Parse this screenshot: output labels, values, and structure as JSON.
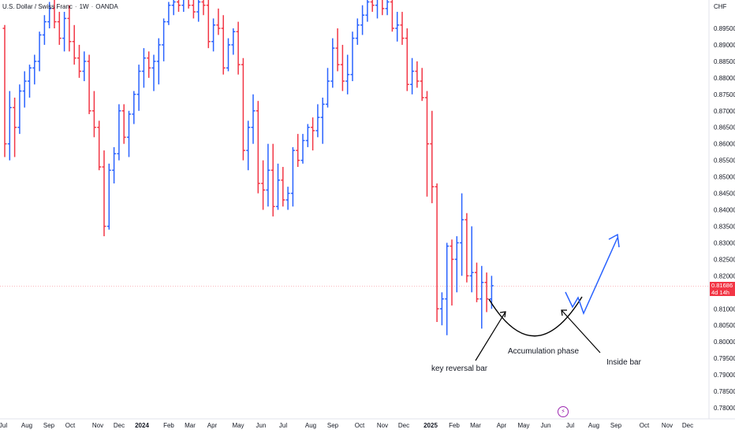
{
  "header": {
    "symbol": "U.S. Dollar / Swiss Franc",
    "interval": "1W",
    "source": "OANDA",
    "currency": "CHF"
  },
  "colors": {
    "up": "#2962ff",
    "down": "#f23645",
    "annotation": "#131722",
    "projection": "#2962ff"
  },
  "price_tag": {
    "price": "0.81686",
    "countdown": "4d 14h"
  },
  "event_icon": "lightning-icon",
  "chart_data": {
    "type": "bar",
    "style": "ohlc",
    "title": "",
    "ylim": [
      0.775,
      0.905
    ],
    "yticks": [
      "0.89500",
      "0.89000",
      "0.88500",
      "0.88000",
      "0.87500",
      "0.87000",
      "0.86500",
      "0.86000",
      "0.85500",
      "0.85000",
      "0.84500",
      "0.84000",
      "0.83500",
      "0.83000",
      "0.82500",
      "0.82000",
      "0.81500",
      "0.81000",
      "0.80500",
      "0.80000",
      "0.79500",
      "0.79000",
      "0.78500",
      "0.78000"
    ],
    "xticks": [
      {
        "label": "Jul",
        "year": false
      },
      {
        "label": "Aug",
        "year": false
      },
      {
        "label": "Sep",
        "year": false
      },
      {
        "label": "Oct",
        "year": false
      },
      {
        "label": "Nov",
        "year": false
      },
      {
        "label": "Dec",
        "year": false
      },
      {
        "label": "2024",
        "year": true
      },
      {
        "label": "Feb",
        "year": false
      },
      {
        "label": "Mar",
        "year": false
      },
      {
        "label": "Apr",
        "year": false
      },
      {
        "label": "May",
        "year": false
      },
      {
        "label": "Jun",
        "year": false
      },
      {
        "label": "Jul",
        "year": false
      },
      {
        "label": "Aug",
        "year": false
      },
      {
        "label": "Sep",
        "year": false
      },
      {
        "label": "Oct",
        "year": false
      },
      {
        "label": "Nov",
        "year": false
      },
      {
        "label": "Dec",
        "year": false
      },
      {
        "label": "2025",
        "year": true
      },
      {
        "label": "Feb",
        "year": false
      },
      {
        "label": "Mar",
        "year": false
      },
      {
        "label": "Apr",
        "year": false
      },
      {
        "label": "May",
        "year": false
      },
      {
        "label": "Jun",
        "year": false
      },
      {
        "label": "Jul",
        "year": false
      },
      {
        "label": "Aug",
        "year": false
      },
      {
        "label": "Sep",
        "year": false
      },
      {
        "label": "Oct",
        "year": false
      },
      {
        "label": "Nov",
        "year": false
      },
      {
        "label": "Dec",
        "year": false
      }
    ],
    "last_price": 0.81686,
    "ohlc": [
      [
        0.895,
        0.896,
        0.856,
        0.86
      ],
      [
        0.86,
        0.876,
        0.855,
        0.871
      ],
      [
        0.871,
        0.874,
        0.856,
        0.865
      ],
      [
        0.865,
        0.878,
        0.863,
        0.876
      ],
      [
        0.876,
        0.882,
        0.871,
        0.879
      ],
      [
        0.879,
        0.884,
        0.874,
        0.883
      ],
      [
        0.883,
        0.887,
        0.878,
        0.885
      ],
      [
        0.885,
        0.894,
        0.882,
        0.893
      ],
      [
        0.893,
        0.899,
        0.89,
        0.897
      ],
      [
        0.897,
        0.903,
        0.895,
        0.901
      ],
      [
        0.901,
        0.905,
        0.895,
        0.897
      ],
      [
        0.897,
        0.9,
        0.89,
        0.892
      ],
      [
        0.892,
        0.9,
        0.888,
        0.898
      ],
      [
        0.898,
        0.902,
        0.888,
        0.891
      ],
      [
        0.891,
        0.896,
        0.884,
        0.886
      ],
      [
        0.886,
        0.89,
        0.88,
        0.882
      ],
      [
        0.882,
        0.888,
        0.879,
        0.885
      ],
      [
        0.885,
        0.887,
        0.869,
        0.87
      ],
      [
        0.87,
        0.876,
        0.862,
        0.865
      ],
      [
        0.865,
        0.867,
        0.852,
        0.853
      ],
      [
        0.853,
        0.858,
        0.832,
        0.835
      ],
      [
        0.835,
        0.854,
        0.834,
        0.852
      ],
      [
        0.852,
        0.859,
        0.848,
        0.857
      ],
      [
        0.857,
        0.872,
        0.855,
        0.87
      ],
      [
        0.87,
        0.872,
        0.86,
        0.862
      ],
      [
        0.862,
        0.87,
        0.856,
        0.869
      ],
      [
        0.869,
        0.876,
        0.866,
        0.875
      ],
      [
        0.875,
        0.884,
        0.87,
        0.882
      ],
      [
        0.882,
        0.889,
        0.877,
        0.886
      ],
      [
        0.886,
        0.888,
        0.88,
        0.883
      ],
      [
        0.883,
        0.887,
        0.876,
        0.885
      ],
      [
        0.885,
        0.892,
        0.878,
        0.89
      ],
      [
        0.89,
        0.898,
        0.885,
        0.897
      ],
      [
        0.897,
        0.903,
        0.896,
        0.902
      ],
      [
        0.902,
        0.905,
        0.899,
        0.903
      ],
      [
        0.903,
        0.906,
        0.9,
        0.902
      ],
      [
        0.902,
        0.906,
        0.9,
        0.904
      ],
      [
        0.904,
        0.907,
        0.901,
        0.902
      ],
      [
        0.902,
        0.906,
        0.898,
        0.9
      ],
      [
        0.9,
        0.905,
        0.897,
        0.903
      ],
      [
        0.903,
        0.906,
        0.899,
        0.902
      ],
      [
        0.902,
        0.904,
        0.889,
        0.891
      ],
      [
        0.891,
        0.898,
        0.888,
        0.896
      ],
      [
        0.896,
        0.901,
        0.893,
        0.895
      ],
      [
        0.895,
        0.899,
        0.881,
        0.883
      ],
      [
        0.883,
        0.892,
        0.882,
        0.89
      ],
      [
        0.89,
        0.895,
        0.887,
        0.894
      ],
      [
        0.894,
        0.897,
        0.881,
        0.884
      ],
      [
        0.884,
        0.886,
        0.855,
        0.858
      ],
      [
        0.858,
        0.867,
        0.852,
        0.865
      ],
      [
        0.865,
        0.875,
        0.86,
        0.87
      ],
      [
        0.87,
        0.873,
        0.845,
        0.848
      ],
      [
        0.848,
        0.855,
        0.84,
        0.846
      ],
      [
        0.846,
        0.86,
        0.841,
        0.852
      ],
      [
        0.852,
        0.86,
        0.838,
        0.841
      ],
      [
        0.841,
        0.854,
        0.84,
        0.849
      ],
      [
        0.849,
        0.853,
        0.841,
        0.843
      ],
      [
        0.843,
        0.847,
        0.84,
        0.845
      ],
      [
        0.845,
        0.859,
        0.841,
        0.858
      ],
      [
        0.858,
        0.863,
        0.853,
        0.855
      ],
      [
        0.855,
        0.863,
        0.854,
        0.861
      ],
      [
        0.861,
        0.866,
        0.859,
        0.865
      ],
      [
        0.865,
        0.868,
        0.858,
        0.864
      ],
      [
        0.864,
        0.872,
        0.862,
        0.868
      ],
      [
        0.868,
        0.874,
        0.86,
        0.872
      ],
      [
        0.872,
        0.883,
        0.871,
        0.879
      ],
      [
        0.879,
        0.892,
        0.877,
        0.889
      ],
      [
        0.889,
        0.895,
        0.882,
        0.884
      ],
      [
        0.884,
        0.89,
        0.876,
        0.879
      ],
      [
        0.879,
        0.887,
        0.875,
        0.881
      ],
      [
        0.881,
        0.894,
        0.879,
        0.892
      ],
      [
        0.892,
        0.898,
        0.89,
        0.896
      ],
      [
        0.896,
        0.902,
        0.893,
        0.899
      ],
      [
        0.899,
        0.905,
        0.897,
        0.903
      ],
      [
        0.903,
        0.906,
        0.9,
        0.902
      ],
      [
        0.902,
        0.905,
        0.898,
        0.904
      ],
      [
        0.904,
        0.906,
        0.899,
        0.901
      ],
      [
        0.901,
        0.906,
        0.899,
        0.903
      ],
      [
        0.903,
        0.904,
        0.894,
        0.895
      ],
      [
        0.895,
        0.9,
        0.891,
        0.896
      ],
      [
        0.896,
        0.9,
        0.89,
        0.892
      ],
      [
        0.892,
        0.895,
        0.876,
        0.878
      ],
      [
        0.878,
        0.886,
        0.875,
        0.882
      ],
      [
        0.882,
        0.885,
        0.877,
        0.879
      ],
      [
        0.879,
        0.883,
        0.873,
        0.874
      ],
      [
        0.874,
        0.876,
        0.844,
        0.86
      ],
      [
        0.86,
        0.87,
        0.842,
        0.847
      ],
      [
        0.847,
        0.848,
        0.806,
        0.81
      ],
      [
        0.81,
        0.815,
        0.805,
        0.813
      ],
      [
        0.813,
        0.83,
        0.802,
        0.829
      ],
      [
        0.829,
        0.831,
        0.811,
        0.825
      ],
      [
        0.825,
        0.832,
        0.815,
        0.83
      ],
      [
        0.83,
        0.845,
        0.82,
        0.837
      ],
      [
        0.837,
        0.839,
        0.818,
        0.82
      ],
      [
        0.82,
        0.835,
        0.815,
        0.821
      ],
      [
        0.821,
        0.824,
        0.812,
        0.813
      ],
      [
        0.813,
        0.823,
        0.804,
        0.818
      ],
      [
        0.818,
        0.821,
        0.809,
        0.813
      ],
      [
        0.813,
        0.82,
        0.81,
        0.817
      ]
    ],
    "annotations": [
      {
        "type": "arc",
        "note": "U-shaped base"
      },
      {
        "label": "key reversal bar"
      },
      {
        "label": "Accumulation phase"
      },
      {
        "label": "Inside bar"
      }
    ]
  }
}
